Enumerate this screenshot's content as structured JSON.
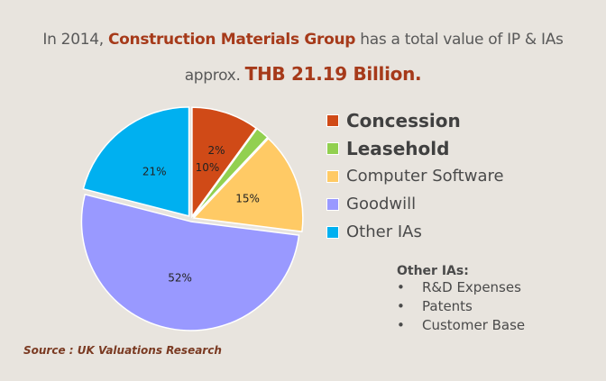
{
  "header": {
    "line1_prefix": "In 2014, ",
    "line1_highlight": "Construction Materials Group",
    "line1_suffix": " has a total value of IP & IAs",
    "line2_prefix": "approx. ",
    "line2_highlight": "THB 21.19  Billion."
  },
  "chart_data": {
    "type": "pie",
    "title": "In 2014, Construction Materials Group has a total value of IP & IAs approx. THB 21.19 Billion.",
    "categories": [
      "Concession",
      "Leasehold",
      "Computer Software",
      "Goodwill",
      "Other IAs"
    ],
    "values": [
      10,
      2,
      15,
      52,
      21
    ],
    "labels": [
      "10%",
      "2%",
      "15%",
      "52%",
      "21%"
    ],
    "colors": [
      "#d04a17",
      "#92d050",
      "#ffca65",
      "#9999ff",
      "#00b0f0"
    ],
    "legend_bold": [
      true,
      true,
      false,
      false,
      false
    ],
    "legend_position": "right",
    "unit": "%"
  },
  "other_ias": {
    "title": "Other IAs:",
    "items": [
      "R&D Expenses",
      "Patents",
      "Customer Base"
    ],
    "bullet": "•"
  },
  "source": "Source : UK Valuations Research"
}
